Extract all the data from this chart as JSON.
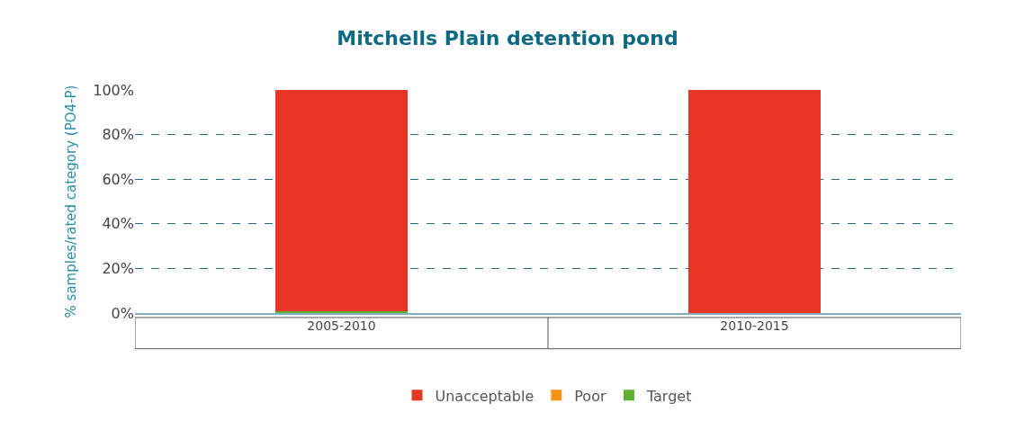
{
  "chart_data": {
    "type": "bar",
    "title": "Mitchells Plain detention pond",
    "ylabel": "% samples/rated category (PO4-P)",
    "categories": [
      "2005-2010",
      "2010-2015"
    ],
    "stacked": true,
    "series": [
      {
        "name": "Target",
        "color": "#5db030",
        "values": [
          1,
          0
        ]
      },
      {
        "name": "Poor",
        "color": "#f39419",
        "values": [
          0,
          0
        ]
      },
      {
        "name": "Unacceptable",
        "color": "#e73526",
        "values": [
          99,
          100
        ]
      }
    ],
    "ylim": [
      0,
      100
    ],
    "yticks": [
      {
        "value": 0,
        "label": "0%"
      },
      {
        "value": 20,
        "label": "20%"
      },
      {
        "value": 40,
        "label": "40%"
      },
      {
        "value": 60,
        "label": "60%"
      },
      {
        "value": 80,
        "label": "80%"
      },
      {
        "value": 100,
        "label": "100%"
      }
    ],
    "grid": "y",
    "legend": "bottom"
  }
}
